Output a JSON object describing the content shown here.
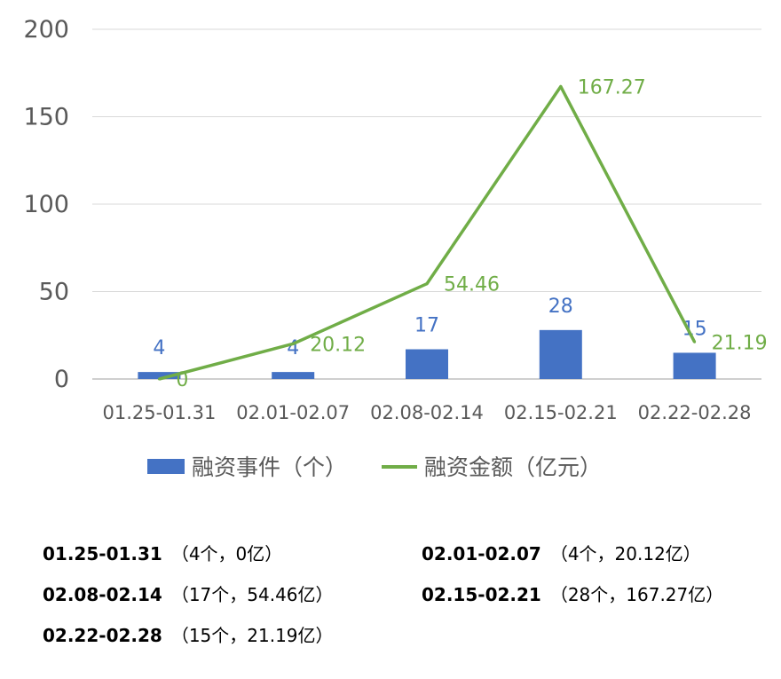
{
  "chart_data": {
    "type": "bar+line",
    "categories": [
      "01.25-01.31",
      "02.01-02.07",
      "02.08-02.14",
      "02.15-02.21",
      "02.22-02.28"
    ],
    "series": [
      {
        "name": "融资事件（个）",
        "type": "bar",
        "color": "#4472c4",
        "values": [
          4,
          4,
          17,
          28,
          15
        ],
        "labels": [
          "4",
          "4",
          "17",
          "28",
          "15"
        ]
      },
      {
        "name": "融资金额（亿元）",
        "type": "line",
        "color": "#70ad47",
        "values": [
          0,
          20.12,
          54.46,
          167.27,
          21.19
        ],
        "labels": [
          "0",
          "20.12",
          "54.46",
          "167.27",
          "21.19"
        ]
      }
    ],
    "ylim": [
      0,
      200
    ],
    "yticks": [
      "0",
      "50",
      "100",
      "150",
      "200"
    ],
    "grid": true,
    "legend": "bottom"
  },
  "summary": [
    {
      "period": "01.25-01.31",
      "detail": "（4个，0亿）"
    },
    {
      "period": "02.01-02.07",
      "detail": "（4个，20.12亿）"
    },
    {
      "period": "02.08-02.14",
      "detail": "（17个，54.46亿）"
    },
    {
      "period": "02.15-02.21",
      "detail": "（28个，167.27亿）"
    },
    {
      "period": "02.22-02.28",
      "detail": "（15个，21.19亿）"
    }
  ]
}
